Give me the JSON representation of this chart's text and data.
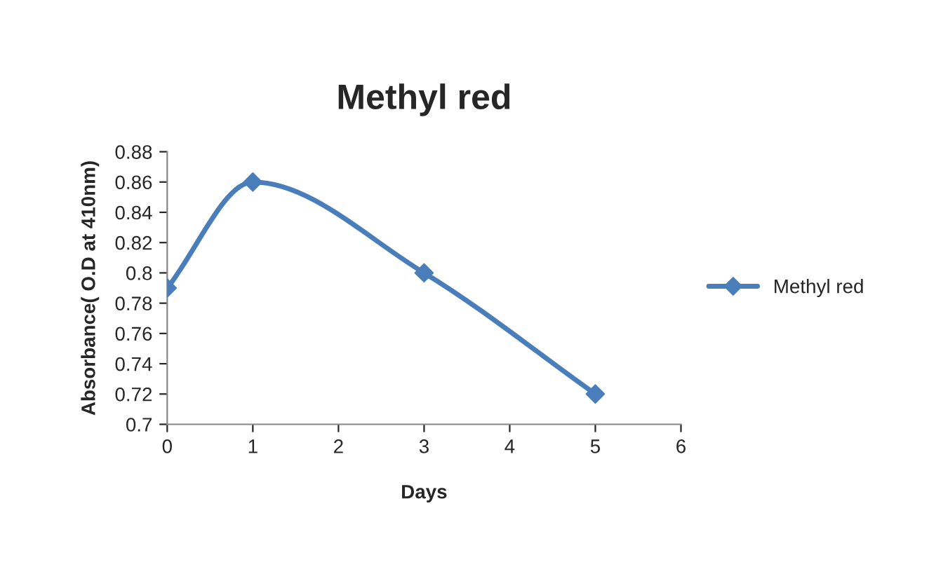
{
  "chart_data": {
    "type": "line",
    "title": "Methyl red",
    "xlabel": "Days",
    "ylabel": "Absorbance( O.D at 410nm)",
    "x": [
      0,
      1,
      3,
      5
    ],
    "series": [
      {
        "name": "Methyl red",
        "color": "#4a7ebb",
        "values": [
          0.79,
          0.86,
          0.8,
          0.72
        ]
      }
    ],
    "xlim": [
      0,
      6
    ],
    "xticks": [
      0,
      1,
      2,
      3,
      4,
      5,
      6
    ],
    "ylim": [
      0.7,
      0.88
    ],
    "yticks": [
      0.7,
      0.72,
      0.74,
      0.76,
      0.78,
      0.8,
      0.82,
      0.84,
      0.86,
      0.88
    ],
    "marker": "diamond",
    "line_style": "solid",
    "grid": false,
    "legend": "right"
  }
}
